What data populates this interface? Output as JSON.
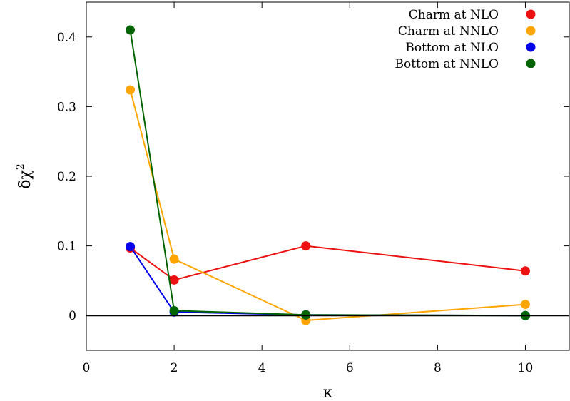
{
  "chart_data": {
    "type": "line",
    "title": "",
    "xlabel": "κ",
    "ylabel": "δχ",
    "ylabel_superscript": "2",
    "xlim": [
      0,
      11
    ],
    "ylim": [
      -0.05,
      0.45
    ],
    "xticks": [
      0,
      2,
      4,
      6,
      8,
      10
    ],
    "yticks": [
      0,
      0.1,
      0.2,
      0.3,
      0.4
    ],
    "xtick_labels": [
      "0",
      "2",
      "4",
      "6",
      "8",
      "10"
    ],
    "ytick_labels": [
      "0",
      "0.1",
      "0.2",
      "0.3",
      "0.4"
    ],
    "reference_line_y": 0,
    "grid": false,
    "legend_position": "top-right",
    "series": [
      {
        "name": "Charm at NLO",
        "color": "#ee1111",
        "x": [
          1,
          2,
          5,
          10
        ],
        "y": [
          0.097,
          0.051,
          0.1,
          0.064
        ]
      },
      {
        "name": "Charm at NNLO",
        "color": "#ffa500",
        "x": [
          1,
          2,
          5,
          10
        ],
        "y": [
          0.324,
          0.081,
          -0.007,
          0.016
        ]
      },
      {
        "name": "Bottom at NLO",
        "color": "#0000ee",
        "x": [
          1,
          2,
          5,
          10
        ],
        "y": [
          0.099,
          0.005,
          0.001,
          0.0
        ]
      },
      {
        "name": "Bottom at NNLO",
        "color": "#006400",
        "x": [
          1,
          2,
          5,
          10
        ],
        "y": [
          0.41,
          0.007,
          0.001,
          0.0
        ]
      }
    ]
  }
}
